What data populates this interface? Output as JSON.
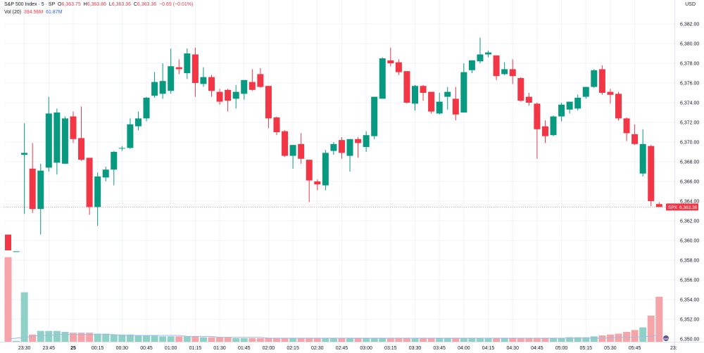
{
  "header": {
    "symbol": "S&P 500 Index · 5 · SP",
    "ohlc": {
      "o_label": "O",
      "o": "6,363.75",
      "h_label": "H",
      "h": "6,363.86",
      "l_label": "L",
      "l": "6,363.36",
      "c_label": "C",
      "c": "6,363.36",
      "change": "−0.65 (−0.01%)"
    },
    "volume_label": "Vol (20)",
    "volume_value": "394.56M",
    "volume_ma": "61.87M",
    "currency": "USD",
    "price_tag_symbol": "SPX",
    "price_tag_value": "6,363.36",
    "last_x_label": "23:"
  },
  "colors": {
    "up": "#089981",
    "down": "#f23645",
    "vol_up": "#8fd1c6",
    "vol_down": "#f6a4a8",
    "vol_ma": "#a3b9e8",
    "grid": "#f0f3fa"
  },
  "chart_data": {
    "type": "candlestick",
    "ylim": [
      6349,
      6386
    ],
    "y_ticks": [
      "6,350.00",
      "6,352.00",
      "6,354.00",
      "6,356.00",
      "6,358.00",
      "6,360.00",
      "6,362.00",
      "6,364.00",
      "6,366.00",
      "6,368.00",
      "6,370.00",
      "6,372.00",
      "6,374.00",
      "6,376.00",
      "6,378.00",
      "6,380.00",
      "6,382.00"
    ],
    "y_tick_values": [
      6350,
      6352,
      6354,
      6356,
      6358,
      6360,
      6362,
      6364,
      6366,
      6368,
      6370,
      6372,
      6374,
      6376,
      6378,
      6380,
      6382
    ],
    "x_ticks": [
      {
        "label": "23:30",
        "i": 2
      },
      {
        "label": "23:45",
        "i": 5
      },
      {
        "label": "25",
        "i": 8
      },
      {
        "label": "00:15",
        "i": 11
      },
      {
        "label": "00:30",
        "i": 14
      },
      {
        "label": "00:45",
        "i": 17
      },
      {
        "label": "01:00",
        "i": 20
      },
      {
        "label": "01:15",
        "i": 23
      },
      {
        "label": "01:30",
        "i": 26
      },
      {
        "label": "01:45",
        "i": 29
      },
      {
        "label": "02:00",
        "i": 32
      },
      {
        "label": "02:15",
        "i": 35
      },
      {
        "label": "02:30",
        "i": 38
      },
      {
        "label": "02:45",
        "i": 41
      },
      {
        "label": "03:00",
        "i": 44
      },
      {
        "label": "03:15",
        "i": 47
      },
      {
        "label": "03:30",
        "i": 50
      },
      {
        "label": "03:45",
        "i": 53
      },
      {
        "label": "04:00",
        "i": 56
      },
      {
        "label": "04:15",
        "i": 59
      },
      {
        "label": "04:30",
        "i": 62
      },
      {
        "label": "04:45",
        "i": 65
      },
      {
        "label": "05:00",
        "i": 68
      },
      {
        "label": "05:15",
        "i": 71
      },
      {
        "label": "05:30",
        "i": 74
      },
      {
        "label": "05:45",
        "i": 77
      }
    ],
    "candles": [
      {
        "o": 6360.6,
        "h": 6360.6,
        "l": 6359.0,
        "c": 6359.0,
        "v": 0.94
      },
      {
        "o": 6358.9,
        "h": 6358.9,
        "l": 6358.9,
        "c": 6358.9,
        "v": 0.01
      },
      {
        "o": 6368.7,
        "h": 6371.9,
        "l": 6362.7,
        "c": 6368.9,
        "v": 0.55
      },
      {
        "o": 6367.3,
        "h": 6369.9,
        "l": 6362.8,
        "c": 6363.2,
        "v": 0.08
      },
      {
        "o": 6363.2,
        "h": 6367.8,
        "l": 6360.6,
        "c": 6367.1,
        "v": 0.12
      },
      {
        "o": 6367.4,
        "h": 6374.6,
        "l": 6367.0,
        "c": 6372.9,
        "v": 0.12
      },
      {
        "o": 6367.9,
        "h": 6373.4,
        "l": 6366.7,
        "c": 6373.0,
        "v": 0.12
      },
      {
        "o": 6367.8,
        "h": 6372.6,
        "l": 6367.8,
        "c": 6372.4,
        "v": 0.11
      },
      {
        "o": 6372.6,
        "h": 6373.1,
        "l": 6369.9,
        "c": 6370.3,
        "v": 0.1
      },
      {
        "o": 6370.4,
        "h": 6373.6,
        "l": 6368.1,
        "c": 6368.2,
        "v": 0.1
      },
      {
        "o": 6368.4,
        "h": 6368.4,
        "l": 6362.6,
        "c": 6363.4,
        "v": 0.1
      },
      {
        "o": 6363.4,
        "h": 6366.9,
        "l": 6361.5,
        "c": 6366.5,
        "v": 0.09
      },
      {
        "o": 6366.4,
        "h": 6367.5,
        "l": 6366.0,
        "c": 6367.2,
        "v": 0.09
      },
      {
        "o": 6367.2,
        "h": 6369.1,
        "l": 6365.6,
        "c": 6369.0,
        "v": 0.08
      },
      {
        "o": 6369.4,
        "h": 6369.6,
        "l": 6369.1,
        "c": 6369.4,
        "v": 0.08
      },
      {
        "o": 6369.4,
        "h": 6372.4,
        "l": 6369.3,
        "c": 6371.8,
        "v": 0.08
      },
      {
        "o": 6371.6,
        "h": 6373.1,
        "l": 6371.2,
        "c": 6372.4,
        "v": 0.07
      },
      {
        "o": 6372.4,
        "h": 6374.6,
        "l": 6372.1,
        "c": 6374.5,
        "v": 0.07
      },
      {
        "o": 6374.7,
        "h": 6377.1,
        "l": 6374.5,
        "c": 6376.1,
        "v": 0.07
      },
      {
        "o": 6374.9,
        "h": 6378.0,
        "l": 6374.4,
        "c": 6376.2,
        "v": 0.06
      },
      {
        "o": 6375.2,
        "h": 6379.5,
        "l": 6374.9,
        "c": 6377.7,
        "v": 0.06
      },
      {
        "o": 6377.6,
        "h": 6378.4,
        "l": 6376.9,
        "c": 6377.4,
        "v": 0.06
      },
      {
        "o": 6377.0,
        "h": 6379.5,
        "l": 6376.4,
        "c": 6379.0,
        "v": 0.06
      },
      {
        "o": 6378.9,
        "h": 6379.6,
        "l": 6374.6,
        "c": 6376.0,
        "v": 0.06
      },
      {
        "o": 6375.9,
        "h": 6377.6,
        "l": 6375.6,
        "c": 6376.6,
        "v": 0.05
      },
      {
        "o": 6376.6,
        "h": 6376.8,
        "l": 6374.6,
        "c": 6375.2,
        "v": 0.05
      },
      {
        "o": 6375.1,
        "h": 6375.4,
        "l": 6373.8,
        "c": 6374.1,
        "v": 0.05
      },
      {
        "o": 6375.3,
        "h": 6375.4,
        "l": 6373.1,
        "c": 6374.2,
        "v": 0.05
      },
      {
        "o": 6374.4,
        "h": 6375.8,
        "l": 6373.4,
        "c": 6375.1,
        "v": 0.04
      },
      {
        "o": 6374.9,
        "h": 6376.3,
        "l": 6374.3,
        "c": 6376.3,
        "v": 0.04
      },
      {
        "o": 6376.1,
        "h": 6377.4,
        "l": 6375.2,
        "c": 6375.3,
        "v": 0.04
      },
      {
        "o": 6376.9,
        "h": 6377.5,
        "l": 6375.5,
        "c": 6375.6,
        "v": 0.04
      },
      {
        "o": 6375.7,
        "h": 6375.7,
        "l": 6371.4,
        "c": 6372.4,
        "v": 0.04
      },
      {
        "o": 6372.5,
        "h": 6372.6,
        "l": 6370.7,
        "c": 6371.0,
        "v": 0.04
      },
      {
        "o": 6371.1,
        "h": 6371.2,
        "l": 6368.5,
        "c": 6368.6,
        "v": 0.04
      },
      {
        "o": 6368.6,
        "h": 6369.7,
        "l": 6367.3,
        "c": 6369.7,
        "v": 0.04
      },
      {
        "o": 6369.8,
        "h": 6370.9,
        "l": 6367.8,
        "c": 6368.3,
        "v": 0.04
      },
      {
        "o": 6368.2,
        "h": 6368.2,
        "l": 6363.9,
        "c": 6366.1,
        "v": 0.04
      },
      {
        "o": 6366.0,
        "h": 6366.2,
        "l": 6365.1,
        "c": 6365.7,
        "v": 0.04
      },
      {
        "o": 6365.6,
        "h": 6369.2,
        "l": 6365.1,
        "c": 6368.9,
        "v": 0.04
      },
      {
        "o": 6369.1,
        "h": 6370.0,
        "l": 6368.7,
        "c": 6369.8,
        "v": 0.04
      },
      {
        "o": 6370.2,
        "h": 6370.5,
        "l": 6368.3,
        "c": 6368.9,
        "v": 0.04
      },
      {
        "o": 6368.6,
        "h": 6370.3,
        "l": 6367.0,
        "c": 6370.3,
        "v": 0.04
      },
      {
        "o": 6370.3,
        "h": 6370.5,
        "l": 6368.4,
        "c": 6369.9,
        "v": 0.04
      },
      {
        "o": 6369.5,
        "h": 6371.1,
        "l": 6369.0,
        "c": 6370.7,
        "v": 0.04
      },
      {
        "o": 6370.6,
        "h": 6374.6,
        "l": 6370.3,
        "c": 6374.6,
        "v": 0.04
      },
      {
        "o": 6374.4,
        "h": 6378.6,
        "l": 6374.4,
        "c": 6378.5,
        "v": 0.04
      },
      {
        "o": 6378.3,
        "h": 6379.6,
        "l": 6377.7,
        "c": 6378.0,
        "v": 0.04
      },
      {
        "o": 6378.1,
        "h": 6378.4,
        "l": 6376.8,
        "c": 6377.1,
        "v": 0.04
      },
      {
        "o": 6377.2,
        "h": 6377.2,
        "l": 6373.9,
        "c": 6374.0,
        "v": 0.04
      },
      {
        "o": 6373.9,
        "h": 6375.8,
        "l": 6373.2,
        "c": 6375.7,
        "v": 0.04
      },
      {
        "o": 6375.7,
        "h": 6375.8,
        "l": 6374.2,
        "c": 6375.0,
        "v": 0.04
      },
      {
        "o": 6375.1,
        "h": 6375.1,
        "l": 6372.9,
        "c": 6373.1,
        "v": 0.04
      },
      {
        "o": 6372.9,
        "h": 6375.0,
        "l": 6372.8,
        "c": 6374.1,
        "v": 0.04
      },
      {
        "o": 6374.6,
        "h": 6375.6,
        "l": 6373.3,
        "c": 6375.1,
        "v": 0.04
      },
      {
        "o": 6374.4,
        "h": 6375.6,
        "l": 6372.2,
        "c": 6372.8,
        "v": 0.04
      },
      {
        "o": 6373.0,
        "h": 6378.0,
        "l": 6373.0,
        "c": 6377.1,
        "v": 0.04
      },
      {
        "o": 6377.3,
        "h": 6378.3,
        "l": 6377.0,
        "c": 6378.3,
        "v": 0.04
      },
      {
        "o": 6378.2,
        "h": 6380.6,
        "l": 6378.0,
        "c": 6378.9,
        "v": 0.04
      },
      {
        "o": 6378.9,
        "h": 6379.3,
        "l": 6378.6,
        "c": 6379.1,
        "v": 0.04
      },
      {
        "o": 6378.8,
        "h": 6378.8,
        "l": 6376.3,
        "c": 6376.7,
        "v": 0.04
      },
      {
        "o": 6376.9,
        "h": 6378.1,
        "l": 6376.8,
        "c": 6377.4,
        "v": 0.04
      },
      {
        "o": 6377.4,
        "h": 6378.4,
        "l": 6375.9,
        "c": 6376.7,
        "v": 0.04
      },
      {
        "o": 6376.5,
        "h": 6376.6,
        "l": 6374.1,
        "c": 6374.2,
        "v": 0.04
      },
      {
        "o": 6374.6,
        "h": 6375.0,
        "l": 6373.7,
        "c": 6374.0,
        "v": 0.04
      },
      {
        "o": 6373.9,
        "h": 6374.0,
        "l": 6368.3,
        "c": 6371.3,
        "v": 0.04
      },
      {
        "o": 6371.6,
        "h": 6372.2,
        "l": 6369.9,
        "c": 6370.6,
        "v": 0.04
      },
      {
        "o": 6370.7,
        "h": 6372.7,
        "l": 6370.6,
        "c": 6372.6,
        "v": 0.04
      },
      {
        "o": 6372.6,
        "h": 6374.0,
        "l": 6372.1,
        "c": 6373.8,
        "v": 0.04
      },
      {
        "o": 6373.3,
        "h": 6374.1,
        "l": 6372.9,
        "c": 6374.1,
        "v": 0.05
      },
      {
        "o": 6373.4,
        "h": 6374.8,
        "l": 6373.2,
        "c": 6374.5,
        "v": 0.05
      },
      {
        "o": 6374.6,
        "h": 6375.6,
        "l": 6374.4,
        "c": 6375.6,
        "v": 0.05
      },
      {
        "o": 6375.6,
        "h": 6377.4,
        "l": 6375.5,
        "c": 6377.3,
        "v": 0.06
      },
      {
        "o": 6377.4,
        "h": 6377.8,
        "l": 6374.8,
        "c": 6375.0,
        "v": 0.07
      },
      {
        "o": 6375.1,
        "h": 6375.4,
        "l": 6373.9,
        "c": 6374.8,
        "v": 0.08
      },
      {
        "o": 6374.9,
        "h": 6375.1,
        "l": 6372.2,
        "c": 6372.4,
        "v": 0.09
      },
      {
        "o": 6372.4,
        "h": 6372.5,
        "l": 6370.1,
        "c": 6370.9,
        "v": 0.11
      },
      {
        "o": 6370.8,
        "h": 6371.8,
        "l": 6369.7,
        "c": 6369.8,
        "v": 0.13
      },
      {
        "o": 6366.8,
        "h": 6371.3,
        "l": 6366.5,
        "c": 6369.8,
        "v": 0.16
      },
      {
        "o": 6369.6,
        "h": 6369.7,
        "l": 6363.5,
        "c": 6364.0,
        "v": 0.29
      },
      {
        "o": 6363.7,
        "h": 6363.9,
        "l": 6363.4,
        "c": 6363.4,
        "v": 0.5
      }
    ],
    "vol_ma": [
      0.03,
      0.04,
      0.05,
      0.06,
      0.07,
      0.07,
      0.08,
      0.08,
      0.08,
      0.08,
      0.08,
      0.08,
      0.08,
      0.08,
      0.07,
      0.07,
      0.07,
      0.07,
      0.07,
      0.07,
      0.07,
      0.07,
      0.06,
      0.06,
      0.06,
      0.06,
      0.05,
      0.05,
      0.05,
      0.05,
      0.05,
      0.05,
      0.04,
      0.04,
      0.04,
      0.04,
      0.04,
      0.04,
      0.04,
      0.04,
      0.04,
      0.04,
      0.04,
      0.04,
      0.04,
      0.04,
      0.04,
      0.04,
      0.04,
      0.04,
      0.04,
      0.04,
      0.04,
      0.04,
      0.04,
      0.04,
      0.04,
      0.04,
      0.04,
      0.04,
      0.04,
      0.04,
      0.04,
      0.04,
      0.04,
      0.04,
      0.04,
      0.04,
      0.04,
      0.04,
      0.04,
      0.04,
      0.04,
      0.04,
      0.04,
      0.05,
      0.05,
      0.05,
      0.06,
      0.06,
      0.08
    ]
  }
}
